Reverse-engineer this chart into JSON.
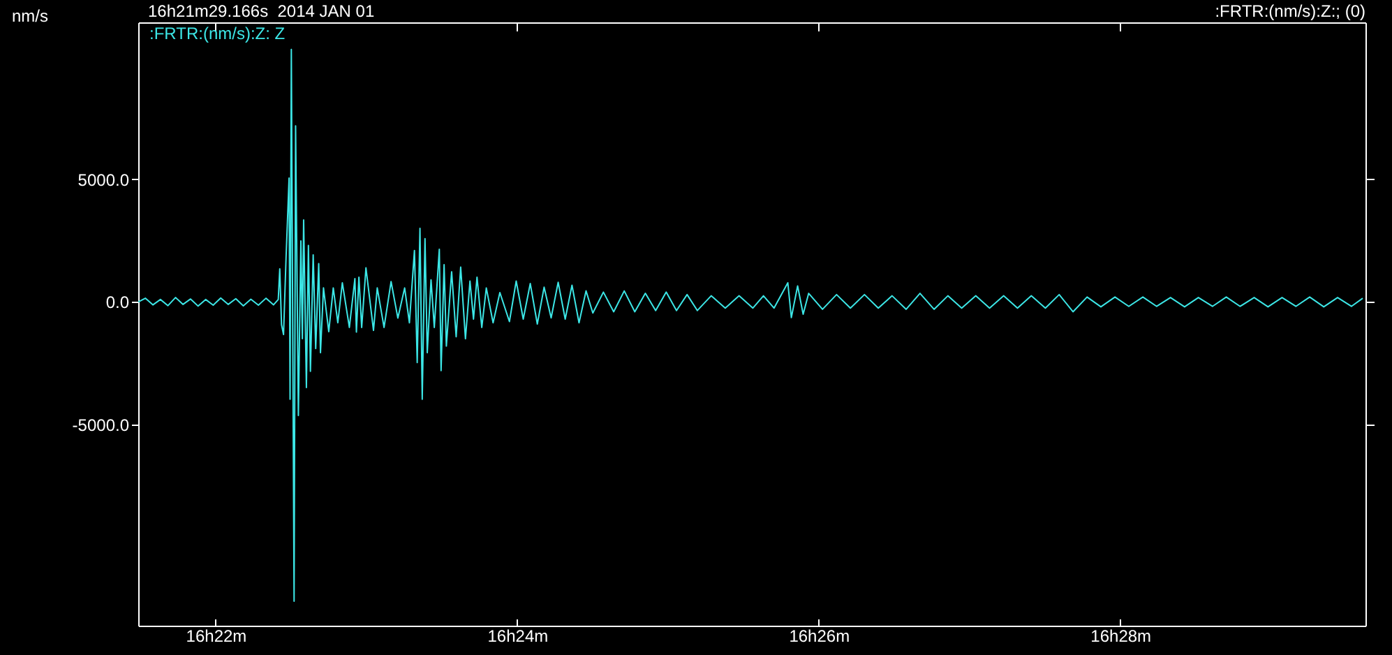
{
  "chart_data": {
    "type": "line",
    "title": "16h21m29.166s  2014 JAN 01",
    "ylabel": "nm/s",
    "annotations": [
      ":FRTR:(nm/s):Z:; (0)"
    ],
    "legend": "top left",
    "x": [
      "--01-01T16:21:29.2",
      "--01-01T16:21:32",
      "--01-01T16:21:35",
      "--01-01T16:21:38",
      "--01-01T16:21:41",
      "--01-01T16:21:44",
      "--01-01T16:21:47",
      "--01-01T16:21:50",
      "--01-01T16:21:53",
      "--01-01T16:21:56",
      "--01-01T16:21:59",
      "--01-01T16:22:02",
      "--01-01T16:22:05",
      "--01-01T16:22:08",
      "--01-01T16:22:11",
      "--01-01T16:22:14",
      "--01-01T16:22:17",
      "--01-01T16:22:20",
      "--01-01T16:22:23",
      "--01-01T16:22:24.9",
      "--01-01T16:22:25.5",
      "--01-01T16:22:26.2",
      "--01-01T16:22:27.0",
      "--01-01T16:22:28.0",
      "--01-01T16:22:29.2",
      "--01-01T16:22:29.6",
      "--01-01T16:22:30.1",
      "--01-01T16:22:31.2",
      "--01-01T16:22:31.8",
      "--01-01T16:22:32.9",
      "--01-01T16:22:33.9",
      "--01-01T16:22:34.5",
      "--01-01T16:22:35.0",
      "--01-01T16:22:36.1",
      "--01-01T16:22:36.9",
      "--01-01T16:22:37.7",
      "--01-01T16:22:38.8",
      "--01-01T16:22:39.8",
      "--01-01T16:22:41.0",
      "--01-01T16:22:41.7",
      "--01-01T16:22:42.9",
      "--01-01T16:22:45.0",
      "--01-01T16:22:46.8",
      "--01-01T16:22:48.6",
      "--01-01T16:22:50.4",
      "--01-01T16:22:53.2",
      "--01-01T16:22:55.4",
      "--01-01T16:22:56.0",
      "--01-01T16:22:57.0",
      "--01-01T16:22:58.1",
      "--01-01T16:22:59.8",
      "--01-01T16:23:02.8",
      "--01-01T16:23:04.3",
      "--01-01T16:23:07.0",
      "--01-01T16:23:09.8",
      "--01-01T16:23:12.5",
      "--01-01T16:23:15.2",
      "--01-01T16:23:17.1",
      "--01-01T16:23:19.1",
      "--01-01T16:23:20.2",
      "--01-01T16:23:21.3",
      "--01-01T16:23:22.2",
      "--01-01T16:23:23.3",
      "--01-01T16:23:24.2",
      "--01-01T16:23:25.7",
      "--01-01T16:23:27.0",
      "--01-01T16:23:29.0",
      "--01-01T16:23:29.7",
      "--01-01T16:23:30.9",
      "--01-01T16:23:31.8",
      "--01-01T16:23:33.9",
      "--01-01T16:23:35.7",
      "--01-01T16:23:37.5",
      "--01-01T16:23:39.4",
      "--01-01T16:23:41.2",
      "--01-01T16:23:42.6",
      "--01-01T16:23:44.0",
      "--01-01T16:23:45.9",
      "--01-01T16:23:47.7",
      "--01-01T16:23:50.4",
      "--01-01T16:23:53.1",
      "--01-01T16:23:56.9",
      "--01-01T16:23:59.6",
      "--01-01T16:24:02.4",
      "--01-01T16:24:05.2",
      "--01-01T16:24:08.0",
      "--01-01T16:24:10.7",
      "--01-01T16:24:13.5",
      "--01-01T16:24:16.3",
      "--01-01T16:24:19.1",
      "--01-01T16:24:21.8",
      "--01-01T16:24:24.6",
      "--01-01T16:24:27.4",
      "--01-01T16:24:30.1",
      "--01-01T16:24:34.3",
      "--01-01T16:24:38.4",
      "--01-01T16:24:42.6",
      "--01-01T16:24:46.8",
      "--01-01T16:24:51.0",
      "--01-01T16:24:55.1",
      "--01-01T16:24:59.3",
      "--01-01T16:25:03.4",
      "--01-01T16:25:07.6",
      "--01-01T16:25:11.7",
      "--01-01T16:25:17.2",
      "--01-01T16:25:22.8",
      "--01-01T16:25:28.3",
      "--01-01T16:25:33.8",
      "--01-01T16:25:38.0",
      "--01-01T16:25:42.2",
      "--01-01T16:25:47.7",
      "--01-01T16:25:49.1",
      "--01-01T16:25:51.6",
      "--01-01T16:25:53.8",
      "--01-01T16:25:56.0",
      "--01-01T16:26:01.5",
      "--01-01T16:26:07.1",
      "--01-01T16:26:12.6",
      "--01-01T16:26:18.2",
      "--01-01T16:26:23.7",
      "--01-01T16:26:29.2",
      "--01-01T16:26:34.8",
      "--01-01T16:26:40.3",
      "--01-01T16:26:45.9",
      "--01-01T16:26:51.4",
      "--01-01T16:26:56.9",
      "--01-01T16:27:02.5",
      "--01-01T16:27:08.0",
      "--01-01T16:27:13.6",
      "--01-01T16:27:19.1",
      "--01-01T16:27:24.6",
      "--01-01T16:27:30.2",
      "--01-01T16:27:35.7",
      "--01-01T16:27:41.2",
      "--01-01T16:27:46.8",
      "--01-01T16:27:52.3",
      "--01-01T16:27:57.9",
      "--01-01T16:28:03.4",
      "--01-01T16:28:09.0",
      "--01-01T16:28:14.5",
      "--01-01T16:28:20.0",
      "--01-01T16:28:25.6",
      "--01-01T16:28:31.1",
      "--01-01T16:28:36.7",
      "--01-01T16:28:42.2",
      "--01-01T16:28:47.7",
      "--01-01T16:28:53.3",
      "--01-01T16:28:58.8",
      "--01-01T16:29:04.4",
      "--01-01T16:29:09.9",
      "--01-01T16:29:15.4",
      "--01-01T16:29:21.0",
      "--01-01T16:29:26.5",
      "--01-01T16:29:32.0",
      "--01-01T16:29:36.5"
    ],
    "series": [
      {
        "name": ":FRTR:(nm/s):Z: Z",
        "color": "#3ce6e6",
        "values": [
          0,
          150,
          -120,
          100,
          -150,
          180,
          -100,
          120,
          -170,
          100,
          -130,
          160,
          -100,
          130,
          -160,
          110,
          -130,
          150,
          -120,
          100,
          1350,
          -930,
          -1330,
          1800,
          5050,
          -3970,
          10300,
          -12200,
          7180,
          -4630,
          2490,
          -1500,
          3340,
          -3490,
          2300,
          -2830,
          1920,
          -1900,
          1560,
          -2070,
          570,
          -1210,
          570,
          -850,
          780,
          -1040,
          950,
          -1230,
          1010,
          -1040,
          1390,
          -1160,
          570,
          -1040,
          830,
          -660,
          570,
          -850,
          2100,
          -2470,
          3000,
          -3970,
          2580,
          -2070,
          900,
          -1040,
          2150,
          -2800,
          1520,
          -1800,
          1230,
          -1420,
          1420,
          -1500,
          850,
          -700,
          1010,
          -1040,
          570,
          -850,
          380,
          -800,
          850,
          -700,
          750,
          -900,
          600,
          -650,
          800,
          -700,
          680,
          -850,
          450,
          -450,
          400,
          -400,
          450,
          -400,
          350,
          -350,
          400,
          -350,
          300,
          -350,
          250,
          -250,
          250,
          -250,
          250,
          -250,
          780,
          -640,
          650,
          -500,
          350,
          -300,
          300,
          -250,
          300,
          -250,
          250,
          -300,
          350,
          -300,
          250,
          -250,
          250,
          -250,
          250,
          -250,
          250,
          -250,
          300,
          -400,
          200,
          -200,
          200,
          -180,
          200,
          -180,
          180,
          -200,
          180,
          -180,
          200,
          -180,
          180,
          -200,
          180,
          -180,
          200,
          -200,
          180,
          -180,
          150
        ]
      }
    ],
    "xlim": [
      "--01-01T16:21:29.166",
      "--01-01T16:29:37.6"
    ],
    "xticks": [
      {
        "value": "--01-01T16:22",
        "label": "16h22m"
      },
      {
        "value": "--01-01T16:24",
        "label": "16h24m"
      },
      {
        "value": "--01-01T16:26",
        "label": "16h26m"
      },
      {
        "value": "--01-01T16:28",
        "label": "16h28m"
      }
    ],
    "ylim": [
      -13200,
      11400
    ],
    "yticks": [
      {
        "value": -5000,
        "label": "-5000.0"
      },
      {
        "value": 0,
        "label": "0.0"
      },
      {
        "value": 5000,
        "label": "5000.0"
      }
    ]
  }
}
